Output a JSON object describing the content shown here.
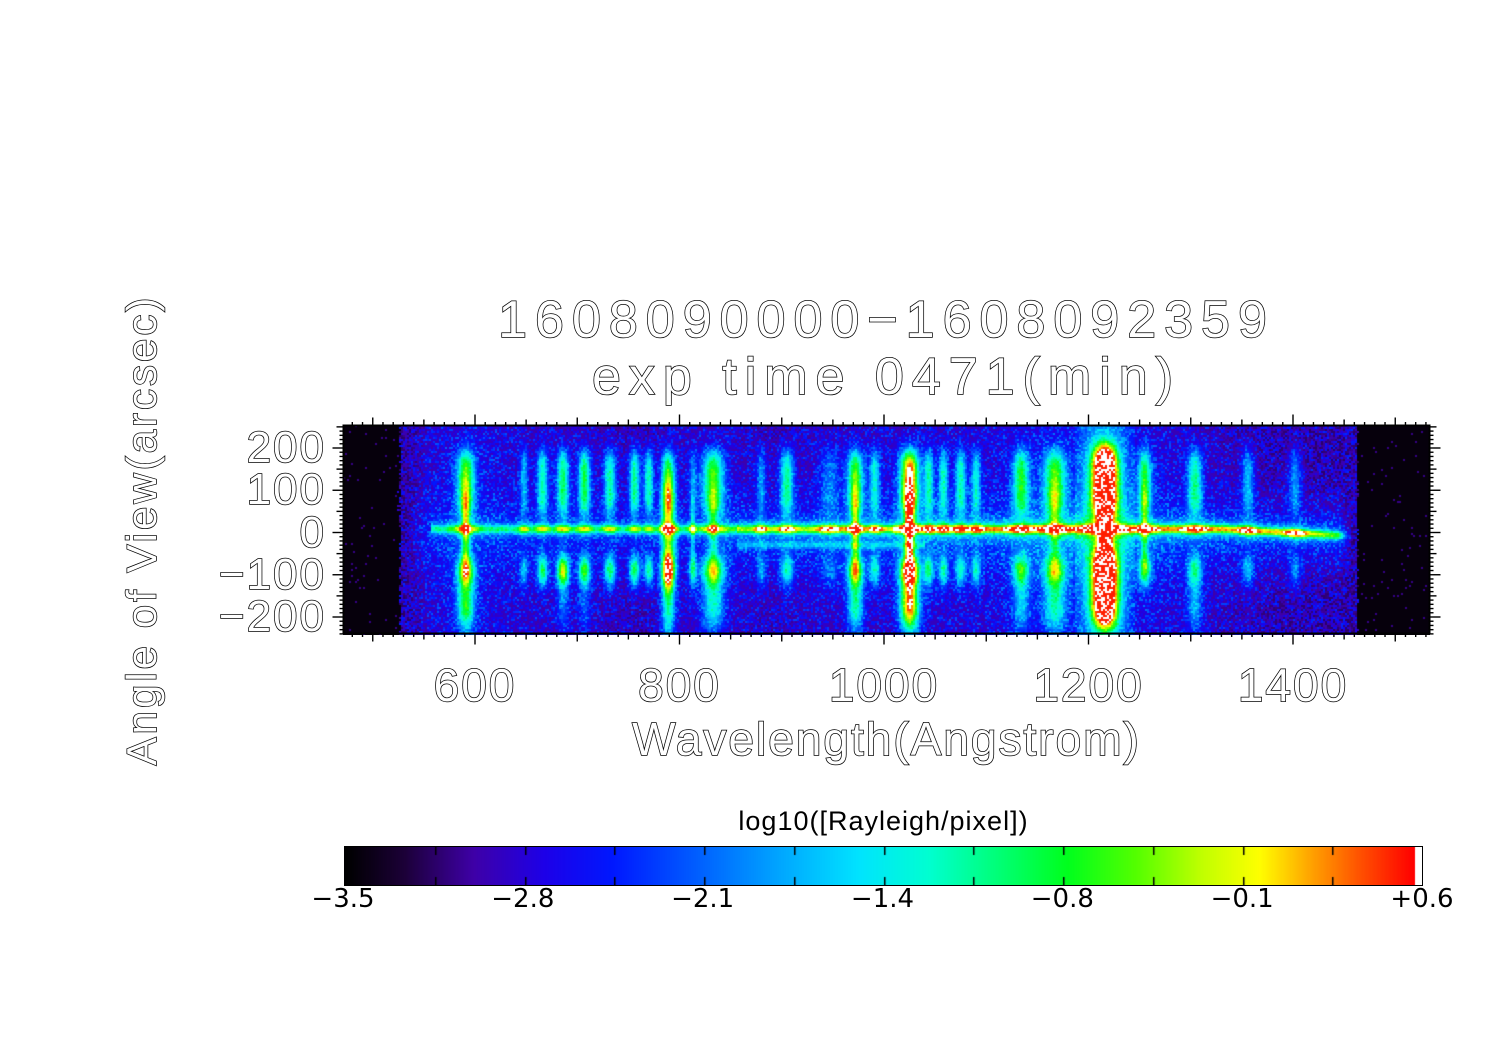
{
  "figure": {
    "title_line1": "1608090000−1608092359",
    "title_line2": "exp time 0471(min)"
  },
  "chart_data": {
    "type": "heatmap",
    "title": "1608090000−1608092359 exp time 0471(min)",
    "xlabel": "Wavelength(Angstrom)",
    "ylabel": "Angle of View(arcsec)",
    "xlim": [
      471,
      1534
    ],
    "ylim": [
      -246,
      251
    ],
    "x_ticks": [
      {
        "value": 600,
        "label": "600"
      },
      {
        "value": 800,
        "label": "800"
      },
      {
        "value": 1000,
        "label": "1000"
      },
      {
        "value": 1200,
        "label": "1200"
      },
      {
        "value": 1400,
        "label": "1400"
      }
    ],
    "x_minor_step": 10,
    "y_ticks": [
      {
        "value": 200,
        "label": "200"
      },
      {
        "value": 100,
        "label": "100"
      },
      {
        "value": 0,
        "label": "0"
      },
      {
        "value": -100,
        "label": "−100"
      },
      {
        "value": -200,
        "label": "−200"
      }
    ],
    "y_minor_step": 10,
    "colorbar": {
      "label": "log10([Rayleigh/pixel])",
      "tick_labels": [
        "−3.5",
        "−2.8",
        "−2.1",
        "−1.4",
        "−0.8",
        "−0.1",
        "+0.6"
      ],
      "range": [
        -3.5,
        0.6
      ],
      "colormap": "rainbow+white",
      "stops": [
        [
          0.0,
          "#000000"
        ],
        [
          0.055,
          "#1c0038"
        ],
        [
          0.12,
          "#3f00a8"
        ],
        [
          0.185,
          "#1e00e8"
        ],
        [
          0.25,
          "#0018ff"
        ],
        [
          0.33,
          "#0060ff"
        ],
        [
          0.41,
          "#00aaff"
        ],
        [
          0.48,
          "#00e4ff"
        ],
        [
          0.545,
          "#00ffd2"
        ],
        [
          0.61,
          "#00ff78"
        ],
        [
          0.675,
          "#00ff1e"
        ],
        [
          0.74,
          "#55ff00"
        ],
        [
          0.8,
          "#c0ff00"
        ],
        [
          0.855,
          "#ffff00"
        ],
        [
          0.905,
          "#ffa000"
        ],
        [
          0.95,
          "#ff5000"
        ],
        [
          1.0,
          "#ff0000"
        ]
      ],
      "white_saturation_level": 0.97
    },
    "blank_bands_angstrom": [
      [
        471,
        527
      ],
      [
        1462,
        1534
      ]
    ],
    "center_glow_line": {
      "angle_arcsec": 8,
      "droop_start_angstrom": 1330,
      "droop_end_angle_arcsec": -9,
      "segments": [
        {
          "from": 556,
          "to": 856,
          "amp": 0.3
        },
        {
          "from": 856,
          "to": 1008,
          "amp": 0.42
        },
        {
          "from": 1008,
          "to": 1412,
          "amp": 0.52
        },
        {
          "from": 1412,
          "to": 1458,
          "amp": 0.34
        }
      ],
      "secondary_band": {
        "from": 856,
        "to": 1040,
        "angle_arcsec": -30,
        "amp": 0.2
      }
    },
    "emission_lines": [
      {
        "wl": 591,
        "sigma": 6.5,
        "top": 0.6,
        "bottom": 0.62,
        "lower_ext": 0.55,
        "waist": 0.5,
        "full_column": 0,
        "peak": 0
      },
      {
        "wl": 648,
        "sigma": 3.0,
        "top": 0.3,
        "bottom": 0.32,
        "lower_ext": 0,
        "waist": 0,
        "full_column": 0,
        "peak": 0
      },
      {
        "wl": 666,
        "sigma": 4.0,
        "top": 0.46,
        "bottom": 0.52,
        "lower_ext": 0,
        "waist": 0,
        "full_column": 0,
        "peak": 0
      },
      {
        "wl": 686,
        "sigma": 4.5,
        "top": 0.52,
        "bottom": 0.7,
        "lower_ext": 0.22,
        "waist": 0,
        "full_column": 0,
        "peak": 0
      },
      {
        "wl": 707,
        "sigma": 4.5,
        "top": 0.55,
        "bottom": 0.56,
        "lower_ext": 0.18,
        "waist": 0,
        "full_column": 0,
        "peak": 0
      },
      {
        "wl": 732,
        "sigma": 4.5,
        "top": 0.48,
        "bottom": 0.52,
        "lower_ext": 0,
        "waist": 0,
        "full_column": 0,
        "peak": 0
      },
      {
        "wl": 756,
        "sigma": 4.0,
        "top": 0.5,
        "bottom": 0.56,
        "lower_ext": 0,
        "waist": 0,
        "full_column": 0,
        "peak": 0
      },
      {
        "wl": 770,
        "sigma": 3.5,
        "top": 0.48,
        "bottom": 0.5,
        "lower_ext": 0,
        "waist": 0,
        "full_column": 0,
        "peak": 0
      },
      {
        "wl": 789,
        "sigma": 5.0,
        "top": 0.42,
        "bottom": 0.55,
        "lower_ext": 0,
        "waist": 0,
        "full_column": 0.58,
        "peak": 0
      },
      {
        "wl": 813,
        "sigma": 3.0,
        "top": 0.22,
        "bottom": 0.4,
        "lower_ext": 0,
        "waist": 0.25,
        "full_column": 0,
        "peak": 0
      },
      {
        "wl": 833,
        "sigma": 8.0,
        "top": 0.6,
        "bottom": 0.62,
        "lower_ext": 0.42,
        "waist": 0.3,
        "full_column": 0,
        "peak": 0
      },
      {
        "wl": 880,
        "sigma": 3.5,
        "top": 0.27,
        "bottom": 0.28,
        "lower_ext": 0,
        "waist": 0,
        "full_column": 0,
        "peak": 0
      },
      {
        "wl": 905,
        "sigma": 5.0,
        "top": 0.5,
        "bottom": 0.44,
        "lower_ext": 0,
        "waist": 0,
        "full_column": 0,
        "peak": 0
      },
      {
        "wl": 947,
        "sigma": 7.0,
        "top": 0.22,
        "bottom": 0.18,
        "lower_ext": 0,
        "waist": 0,
        "full_column": 0,
        "peak": 0
      },
      {
        "wl": 972,
        "sigma": 6.0,
        "top": 0.62,
        "bottom": 0.63,
        "lower_ext": 0.48,
        "waist": 0.45,
        "full_column": 0,
        "peak": 0
      },
      {
        "wl": 991,
        "sigma": 4.0,
        "top": 0.4,
        "bottom": 0.4,
        "lower_ext": 0,
        "waist": 0,
        "full_column": 0,
        "peak": 0
      },
      {
        "wl": 1025,
        "sigma": 7.0,
        "top": 0.88,
        "bottom": 0.9,
        "lower_ext": 0.86,
        "waist": 0.8,
        "full_column": 0,
        "peak": 0
      },
      {
        "wl": 1044,
        "sigma": 3.5,
        "top": 0.42,
        "bottom": 0.45,
        "lower_ext": 0,
        "waist": 0,
        "full_column": 0,
        "peak": 0
      },
      {
        "wl": 1058,
        "sigma": 3.5,
        "top": 0.42,
        "bottom": 0.42,
        "lower_ext": 0,
        "waist": 0,
        "full_column": 0,
        "peak": 0
      },
      {
        "wl": 1075,
        "sigma": 4.0,
        "top": 0.45,
        "bottom": 0.42,
        "lower_ext": 0,
        "waist": 0,
        "full_column": 0,
        "peak": 0
      },
      {
        "wl": 1090,
        "sigma": 3.5,
        "top": 0.4,
        "bottom": 0.4,
        "lower_ext": 0,
        "waist": 0,
        "full_column": 0,
        "peak": 0
      },
      {
        "wl": 1134,
        "sigma": 6.0,
        "top": 0.52,
        "bottom": 0.5,
        "lower_ext": 0.3,
        "waist": 0,
        "full_column": 0,
        "peak": 0
      },
      {
        "wl": 1167,
        "sigma": 8.0,
        "top": 0.56,
        "bottom": 0.52,
        "lower_ext": 0.4,
        "waist": 0.3,
        "full_column": 0,
        "peak": 0
      },
      {
        "wl": 1216,
        "sigma": 9.0,
        "top": 0,
        "bottom": 0,
        "lower_ext": 0,
        "waist": 0.95,
        "full_column": 0,
        "peak": 1.18
      },
      {
        "wl": 1255,
        "sigma": 5.0,
        "top": 0.52,
        "bottom": 0.48,
        "lower_ext": 0,
        "waist": 0.35,
        "full_column": 0,
        "peak": 0
      },
      {
        "wl": 1304,
        "sigma": 5.5,
        "top": 0.48,
        "bottom": 0.42,
        "lower_ext": 0.3,
        "waist": 0,
        "full_column": 0,
        "peak": 0
      },
      {
        "wl": 1356,
        "sigma": 4.5,
        "top": 0.34,
        "bottom": 0.32,
        "lower_ext": 0,
        "waist": 0,
        "full_column": 0,
        "peak": 0
      },
      {
        "wl": 1402,
        "sigma": 4.5,
        "top": 0.3,
        "bottom": 0.26,
        "lower_ext": 0,
        "waist": 0,
        "full_column": 0,
        "peak": 0
      }
    ],
    "haze_bumps": [
      {
        "wl": 590,
        "amp": 0.09,
        "sigma": 35
      },
      {
        "wl": 690,
        "amp": 0.05,
        "sigma": 50
      },
      {
        "wl": 830,
        "amp": 0.06,
        "sigma": 35
      },
      {
        "wl": 945,
        "amp": 0.05,
        "sigma": 40
      },
      {
        "wl": 1030,
        "amp": 0.05,
        "sigma": 30
      },
      {
        "wl": 1110,
        "amp": 0.05,
        "sigma": 60
      },
      {
        "wl": 1170,
        "amp": 0.04,
        "sigma": 40
      },
      {
        "wl": 1216,
        "amp": 0.09,
        "sigma": 55
      },
      {
        "wl": 1300,
        "amp": 0.03,
        "sigma": 60
      }
    ]
  }
}
